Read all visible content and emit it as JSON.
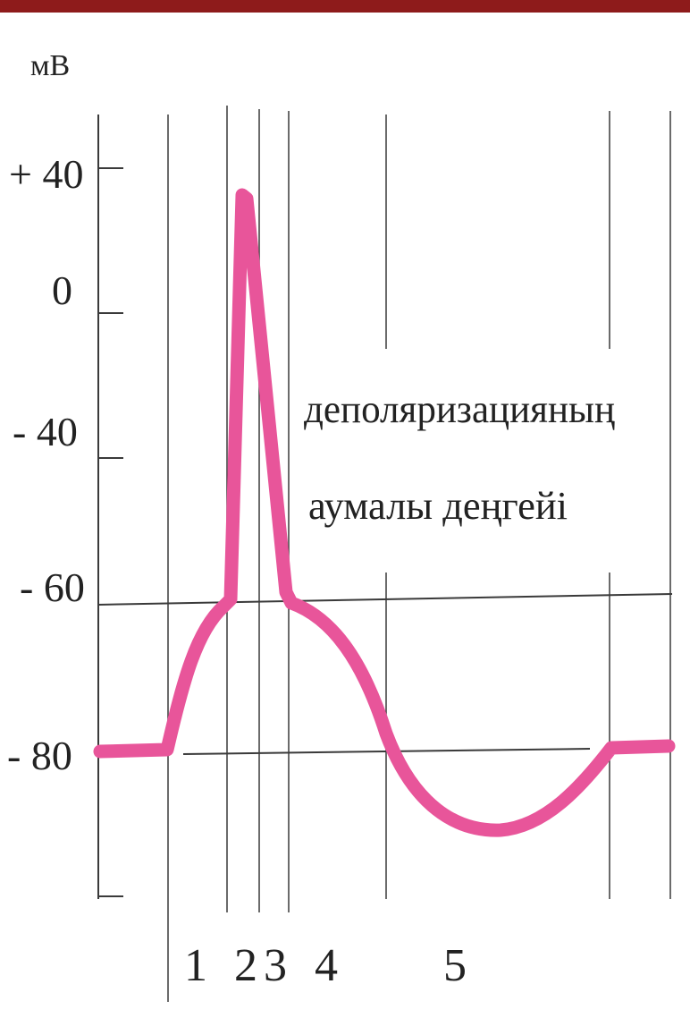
{
  "header_bar": {
    "color": "#8e1b1b"
  },
  "chart_data": {
    "type": "line",
    "title": "",
    "ylabel": "мВ",
    "xlabel": "",
    "y_ticks": [
      "+ 40",
      "0",
      "- 40",
      "- 60",
      "- 80"
    ],
    "threshold_label_lines": [
      "деполяризацияның",
      "аумалы деңгейі"
    ],
    "phase_labels": [
      "1",
      "2",
      "3",
      "4",
      "5"
    ],
    "reference_levels": {
      "threshold_mV": -60,
      "resting_mV": -80
    },
    "series": [
      {
        "color": "#e8559a",
        "points_mV": [
          -80,
          -80,
          -70,
          -62,
          -60,
          30,
          -10,
          -60,
          -70,
          -80,
          -90,
          -93,
          -88,
          -80,
          -80
        ]
      }
    ]
  },
  "colors": {
    "curve": "#e8559a",
    "grid": "#3a3a3a",
    "text": "#222222"
  }
}
